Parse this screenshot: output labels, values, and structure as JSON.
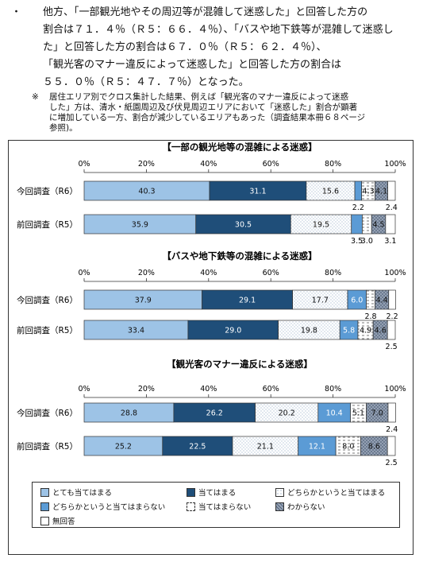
{
  "text": {
    "bullet": "・",
    "lines": [
      "他方、「一部観光地やその周辺等が混雑して迷惑した」と回答した方の",
      "割合は７１．４％（Ｒ５：６６．４％）、「バスや地下鉄等が混雑して迷惑し",
      "た」と回答した方の割合は６７．０％（Ｒ５：６２．４％）、",
      "「観光客のマナー違反によって迷惑した」と回答した方の割合は",
      "５５．０％（Ｒ５：４７．７％）となった。"
    ],
    "note_mark": "※",
    "note_lines": [
      "居住エリア別でクロス集計した結果、例えば「観光客のマナー違反によって迷惑",
      "した」方は、清水・紙園周辺及び伏見周辺エリアにおいて「迷惑した」割合が顕著",
      "に増加している一方、割合が減少しているエリアもあった（調査結果本冊６８ページ",
      "参照)。"
    ]
  },
  "colors": {
    "c1": "#9dc3e6",
    "c2": "#1f4e79",
    "c3": "#ffffff",
    "c4": "#5b9bd5",
    "c5": "#ffffff",
    "c6": "#9aa6b8",
    "c7": "#ffffff"
  },
  "chart_data": [
    {
      "type": "bar",
      "orientation": "horizontal-stacked-100",
      "title": "【一部の観光地等の混雑による迷惑】",
      "xlim": [
        0,
        100
      ],
      "xticks": [
        "0%",
        "20%",
        "40%",
        "60%",
        "80%",
        "100%"
      ],
      "categories": [
        "今回調査（R6）",
        "前回調査（R5）"
      ],
      "series": [
        {
          "name": "とても当てはまる",
          "values": [
            40.3,
            35.9
          ]
        },
        {
          "name": "当てはまる",
          "values": [
            31.1,
            30.5
          ]
        },
        {
          "name": "どちらかというと当てはまる",
          "values": [
            15.6,
            19.5
          ]
        },
        {
          "name": "どちらかというと当てはまらない",
          "values": [
            2.2,
            3.5
          ]
        },
        {
          "name": "当てはまらない",
          "values": [
            4.3,
            3.0
          ]
        },
        {
          "name": "わからない",
          "values": [
            4.1,
            4.5
          ]
        },
        {
          "name": "無回答",
          "values": [
            2.4,
            3.1
          ]
        }
      ]
    },
    {
      "type": "bar",
      "orientation": "horizontal-stacked-100",
      "title": "【バスや地下鉄等の混雑による迷惑】",
      "xlim": [
        0,
        100
      ],
      "xticks": [
        "0%",
        "20%",
        "40%",
        "60%",
        "80%",
        "100%"
      ],
      "categories": [
        "今回調査（R6）",
        "前回調査（R5）"
      ],
      "series": [
        {
          "name": "とても当てはまる",
          "values": [
            37.9,
            33.4
          ]
        },
        {
          "name": "当てはまる",
          "values": [
            29.1,
            29.0
          ]
        },
        {
          "name": "どちらかというと当てはまる",
          "values": [
            17.7,
            19.8
          ]
        },
        {
          "name": "どちらかというと当てはまらない",
          "values": [
            6.0,
            5.8
          ]
        },
        {
          "name": "当てはまらない",
          "values": [
            2.8,
            4.9
          ]
        },
        {
          "name": "わからない",
          "values": [
            4.4,
            4.6
          ]
        },
        {
          "name": "無回答",
          "values": [
            2.2,
            2.5
          ]
        }
      ]
    },
    {
      "type": "bar",
      "orientation": "horizontal-stacked-100",
      "title": "【観光客のマナー違反による迷惑】",
      "xlim": [
        0,
        100
      ],
      "xticks": [
        "0%",
        "20%",
        "40%",
        "60%",
        "80%",
        "100%"
      ],
      "categories": [
        "今回調査（R6）",
        "前回調査（R5）"
      ],
      "series": [
        {
          "name": "とても当てはまる",
          "values": [
            28.8,
            25.2
          ]
        },
        {
          "name": "当てはまる",
          "values": [
            26.2,
            22.5
          ]
        },
        {
          "name": "どちらかというと当てはまる",
          "values": [
            20.2,
            21.1
          ]
        },
        {
          "name": "どちらかというと当てはまらない",
          "values": [
            10.4,
            12.1
          ]
        },
        {
          "name": "当てはまらない",
          "values": [
            5.1,
            8.0
          ]
        },
        {
          "name": "わからない",
          "values": [
            7.0,
            8.6
          ]
        },
        {
          "name": "無回答",
          "values": [
            2.4,
            2.5
          ]
        }
      ]
    }
  ]
}
